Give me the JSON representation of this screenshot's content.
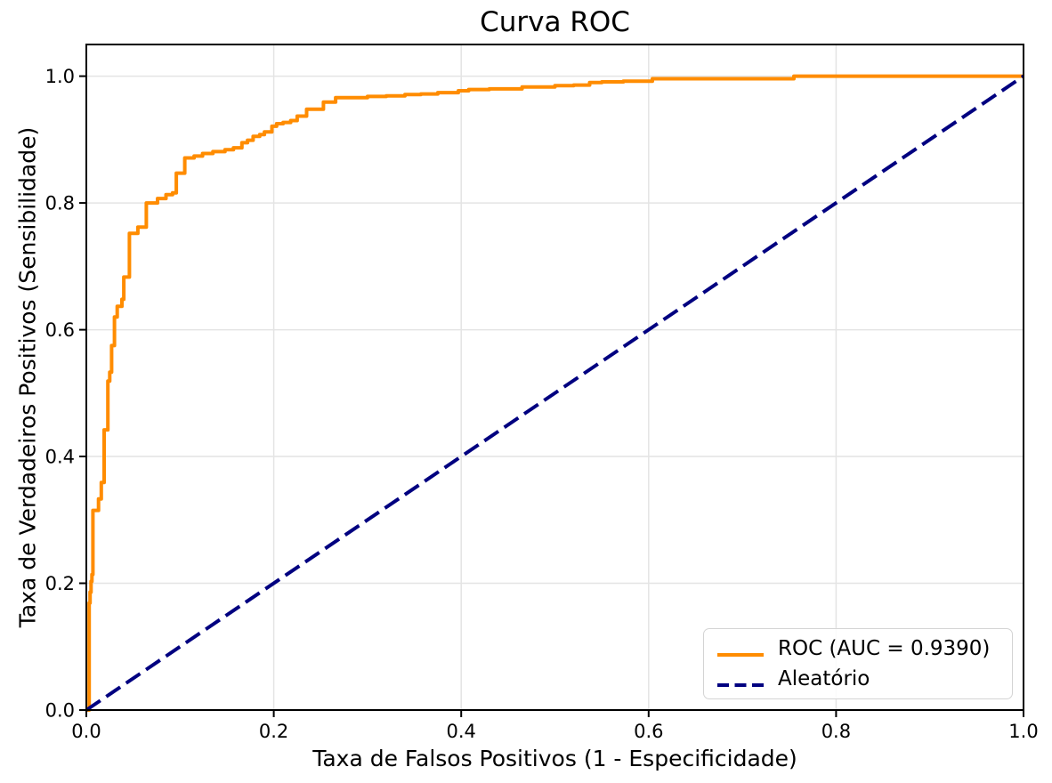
{
  "figure": {
    "title": "Curva ROC",
    "xlabel": "Taxa de Falsos Positivos (1 - Especificidade)",
    "ylabel": "Taxa de Verdadeiros Positivos (Sensibilidade)"
  },
  "legend": {
    "entries": [
      {
        "label": "ROC (AUC = 0.9390)",
        "color": "#FF8C00",
        "style": "solid"
      },
      {
        "label": "Aleatório",
        "color": "#000080",
        "style": "dashed"
      }
    ]
  },
  "chart_data": {
    "type": "line",
    "title": "Curva ROC",
    "xlabel": "Taxa de Falsos Positivos (1 - Especificidade)",
    "ylabel": "Taxa de Verdadeiros Positivos (Sensibilidade)",
    "xlim": [
      0.0,
      1.0
    ],
    "ylim": [
      0.0,
      1.05
    ],
    "x_ticks": {
      "values": [
        0.0,
        0.2,
        0.4,
        0.6,
        0.8,
        1.0
      ],
      "labels": [
        "0.0",
        "0.2",
        "0.4",
        "0.6",
        "0.8",
        "1.0"
      ]
    },
    "y_ticks": {
      "values": [
        0.0,
        0.2,
        0.4,
        0.6,
        0.8,
        1.0
      ],
      "labels": [
        "0.0",
        "0.2",
        "0.4",
        "0.6",
        "0.8",
        "1.0"
      ]
    },
    "grid": true,
    "grid_color": "#e4e4e4",
    "spine_color": "#000000",
    "legend_position": "lower right",
    "auc": 0.939,
    "series": [
      {
        "name": "ROC (AUC = 0.9390)",
        "color": "#FF8C00",
        "style": "solid",
        "points": [
          [
            0.0,
            0.0
          ],
          [
            0.003,
            0.0
          ],
          [
            0.003,
            0.169
          ],
          [
            0.004,
            0.169
          ],
          [
            0.004,
            0.186
          ],
          [
            0.005,
            0.186
          ],
          [
            0.005,
            0.203
          ],
          [
            0.006,
            0.203
          ],
          [
            0.006,
            0.214
          ],
          [
            0.007,
            0.214
          ],
          [
            0.007,
            0.315
          ],
          [
            0.013,
            0.315
          ],
          [
            0.013,
            0.333
          ],
          [
            0.016,
            0.333
          ],
          [
            0.016,
            0.359
          ],
          [
            0.019,
            0.359
          ],
          [
            0.019,
            0.442
          ],
          [
            0.023,
            0.442
          ],
          [
            0.023,
            0.519
          ],
          [
            0.025,
            0.519
          ],
          [
            0.025,
            0.533
          ],
          [
            0.027,
            0.533
          ],
          [
            0.027,
            0.575
          ],
          [
            0.03,
            0.575
          ],
          [
            0.03,
            0.62
          ],
          [
            0.033,
            0.62
          ],
          [
            0.033,
            0.637
          ],
          [
            0.038,
            0.637
          ],
          [
            0.038,
            0.648
          ],
          [
            0.04,
            0.648
          ],
          [
            0.04,
            0.683
          ],
          [
            0.046,
            0.683
          ],
          [
            0.046,
            0.752
          ],
          [
            0.055,
            0.752
          ],
          [
            0.055,
            0.762
          ],
          [
            0.064,
            0.762
          ],
          [
            0.064,
            0.8
          ],
          [
            0.076,
            0.8
          ],
          [
            0.076,
            0.807
          ],
          [
            0.085,
            0.807
          ],
          [
            0.085,
            0.813
          ],
          [
            0.092,
            0.813
          ],
          [
            0.092,
            0.816
          ],
          [
            0.096,
            0.816
          ],
          [
            0.096,
            0.847
          ],
          [
            0.105,
            0.847
          ],
          [
            0.105,
            0.871
          ],
          [
            0.115,
            0.871
          ],
          [
            0.115,
            0.874
          ],
          [
            0.124,
            0.874
          ],
          [
            0.124,
            0.878
          ],
          [
            0.135,
            0.878
          ],
          [
            0.135,
            0.881
          ],
          [
            0.148,
            0.881
          ],
          [
            0.148,
            0.884
          ],
          [
            0.157,
            0.884
          ],
          [
            0.157,
            0.887
          ],
          [
            0.166,
            0.887
          ],
          [
            0.166,
            0.895
          ],
          [
            0.172,
            0.895
          ],
          [
            0.172,
            0.899
          ],
          [
            0.178,
            0.899
          ],
          [
            0.178,
            0.905
          ],
          [
            0.185,
            0.905
          ],
          [
            0.185,
            0.908
          ],
          [
            0.19,
            0.908
          ],
          [
            0.19,
            0.912
          ],
          [
            0.198,
            0.912
          ],
          [
            0.198,
            0.921
          ],
          [
            0.203,
            0.921
          ],
          [
            0.203,
            0.925
          ],
          [
            0.21,
            0.925
          ],
          [
            0.21,
            0.927
          ],
          [
            0.218,
            0.927
          ],
          [
            0.218,
            0.93
          ],
          [
            0.225,
            0.93
          ],
          [
            0.225,
            0.937
          ],
          [
            0.235,
            0.937
          ],
          [
            0.235,
            0.948
          ],
          [
            0.253,
            0.948
          ],
          [
            0.253,
            0.959
          ],
          [
            0.266,
            0.959
          ],
          [
            0.266,
            0.966
          ],
          [
            0.3,
            0.966
          ],
          [
            0.3,
            0.968
          ],
          [
            0.32,
            0.968
          ],
          [
            0.32,
            0.969
          ],
          [
            0.34,
            0.969
          ],
          [
            0.34,
            0.971
          ],
          [
            0.357,
            0.971
          ],
          [
            0.357,
            0.972
          ],
          [
            0.375,
            0.972
          ],
          [
            0.375,
            0.974
          ],
          [
            0.397,
            0.974
          ],
          [
            0.397,
            0.977
          ],
          [
            0.408,
            0.977
          ],
          [
            0.408,
            0.979
          ],
          [
            0.43,
            0.979
          ],
          [
            0.43,
            0.98
          ],
          [
            0.465,
            0.98
          ],
          [
            0.465,
            0.983
          ],
          [
            0.5,
            0.983
          ],
          [
            0.5,
            0.985
          ],
          [
            0.52,
            0.985
          ],
          [
            0.52,
            0.986
          ],
          [
            0.537,
            0.986
          ],
          [
            0.537,
            0.99
          ],
          [
            0.55,
            0.99
          ],
          [
            0.55,
            0.991
          ],
          [
            0.573,
            0.991
          ],
          [
            0.573,
            0.992
          ],
          [
            0.604,
            0.992
          ],
          [
            0.604,
            0.996
          ],
          [
            0.755,
            0.996
          ],
          [
            0.755,
            1.0
          ],
          [
            1.0,
            1.0
          ]
        ]
      },
      {
        "name": "Aleatório",
        "color": "#000080",
        "style": "dashed",
        "points": [
          [
            0.0,
            0.0
          ],
          [
            1.0,
            1.0
          ]
        ]
      }
    ]
  }
}
